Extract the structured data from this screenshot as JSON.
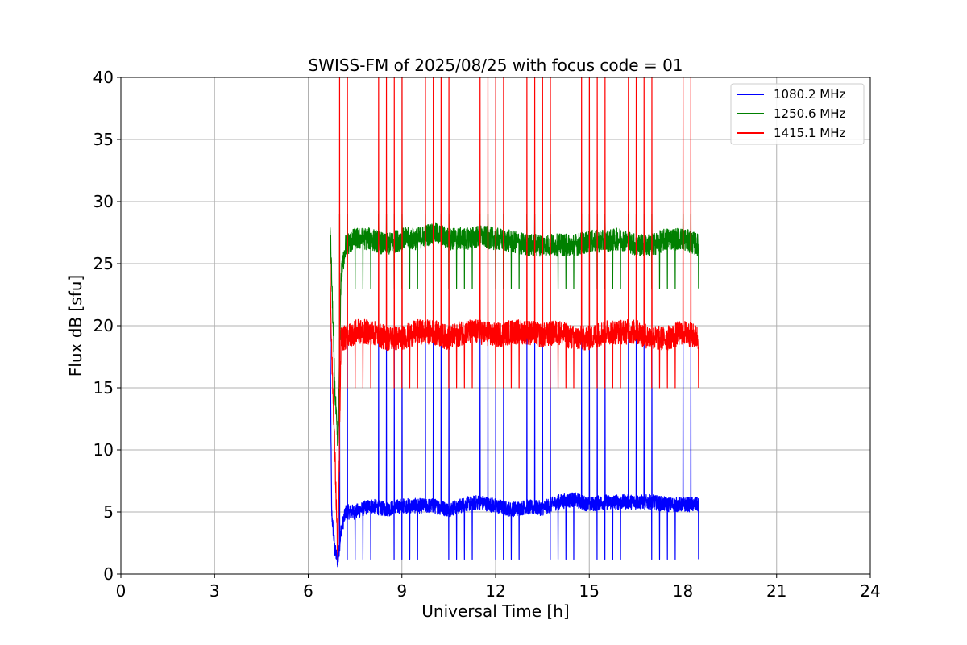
{
  "chart_data": {
    "type": "line",
    "title": "SWISS-FM of 2025/08/25 with focus code = 01",
    "xlabel": "Universal Time [h]",
    "ylabel": "Flux dB [sfu]",
    "xlim": [
      0,
      24
    ],
    "ylim": [
      0,
      40
    ],
    "xticks": [
      0,
      3,
      6,
      9,
      12,
      15,
      18,
      21,
      24
    ],
    "yticks": [
      0,
      5,
      10,
      15,
      20,
      25,
      30,
      35,
      40
    ],
    "grid": true,
    "legend_position": "top-right",
    "data_range_hours": [
      6.7,
      18.5
    ],
    "series": [
      {
        "name": "1080.2 MHz",
        "color": "#0000ff",
        "x": [
          6.7,
          6.75,
          6.85,
          6.95,
          7.05,
          7.2,
          7.5,
          8,
          8.5,
          9,
          9.5,
          10,
          10.5,
          11,
          11.5,
          12,
          12.5,
          13,
          13.5,
          14,
          14.5,
          15,
          15.5,
          16,
          16.5,
          17,
          17.5,
          18,
          18.5
        ],
        "values": [
          20,
          5,
          2,
          1,
          3.5,
          5,
          5,
          5.5,
          5.2,
          5.5,
          5.5,
          5.5,
          5.2,
          5.6,
          5.8,
          5.5,
          5.2,
          5.4,
          5.3,
          5.8,
          6,
          5.6,
          5.8,
          5.8,
          5.8,
          5.8,
          5.6,
          5.6,
          5.6
        ],
        "periodic_spike_values": {
          "min": 1.2,
          "max": 19
        }
      },
      {
        "name": "1250.6 MHz",
        "color": "#008000",
        "x": [
          6.7,
          6.75,
          6.85,
          6.95,
          7.05,
          7.2,
          7.5,
          8,
          8.5,
          9,
          9.5,
          10,
          10.5,
          11,
          11.5,
          12,
          12.5,
          13,
          13.5,
          14,
          14.5,
          15,
          15.5,
          16,
          16.5,
          17,
          17.5,
          18,
          18.5
        ],
        "values": [
          28,
          24,
          15,
          10,
          24,
          26.5,
          27,
          27,
          26.5,
          27,
          27,
          27.5,
          27,
          27,
          27.2,
          27,
          26.8,
          26.5,
          26.5,
          26.5,
          26.5,
          26.8,
          26.8,
          27,
          26.5,
          26.5,
          27,
          27,
          26.5
        ],
        "periodic_spike_values": {
          "min": 23,
          "max": 29
        }
      },
      {
        "name": "1415.1 MHz",
        "color": "#ff0000",
        "x": [
          6.7,
          6.75,
          6.85,
          6.95,
          7.05,
          7.2,
          7.5,
          8,
          8.5,
          9,
          9.5,
          10,
          10.5,
          11,
          11.5,
          12,
          12.5,
          13,
          13.5,
          14,
          14.5,
          15,
          15.5,
          16,
          16.5,
          17,
          17.5,
          18,
          18.5
        ],
        "values": [
          25,
          18,
          10,
          1,
          19,
          19,
          19.5,
          19.5,
          19,
          19,
          19.5,
          19.5,
          19,
          19.5,
          19.5,
          19.2,
          19.5,
          19.5,
          19.2,
          19.5,
          19,
          19,
          19.5,
          19.5,
          19.5,
          19,
          19,
          19.5,
          19
        ],
        "periodic_spike_values": {
          "min": 15,
          "max": 40
        }
      }
    ]
  }
}
